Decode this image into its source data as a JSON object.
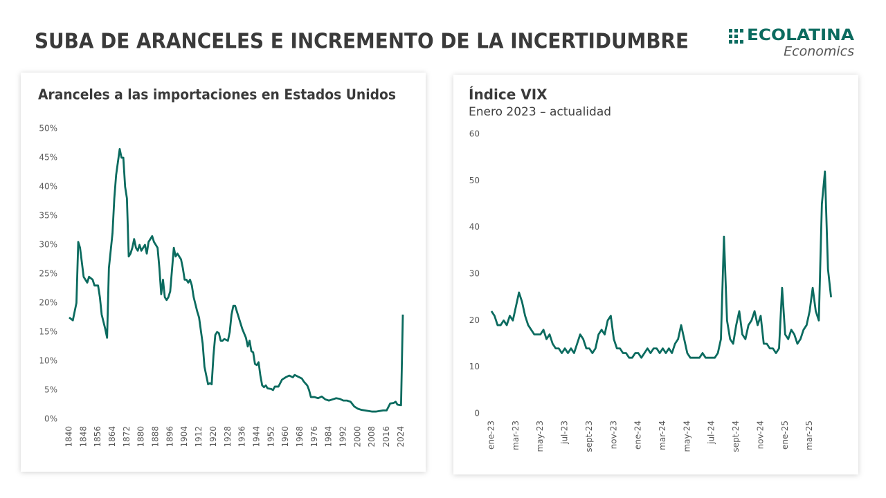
{
  "header": {
    "title": "SUBA DE ARANCELES E INCREMENTO DE LA INCERTIDUMBRE"
  },
  "logo": {
    "name": "ECOLATINA",
    "tagline": "Economics"
  },
  "chart_data": [
    {
      "type": "line",
      "title": "Aranceles a las importaciones en Estados Unidos",
      "color": "#0b6b5f",
      "x": [
        1840,
        1842,
        1844,
        1845,
        1846,
        1847,
        1848,
        1850,
        1851,
        1853,
        1854,
        1856,
        1857,
        1858,
        1860,
        1861,
        1862,
        1864,
        1865,
        1866,
        1868,
        1869,
        1870,
        1871,
        1872,
        1873,
        1874,
        1875,
        1876,
        1877,
        1878,
        1879,
        1880,
        1882,
        1883,
        1884,
        1886,
        1887,
        1889,
        1890,
        1891,
        1892,
        1893,
        1894,
        1895,
        1896,
        1898,
        1899,
        1900,
        1902,
        1903,
        1904,
        1905,
        1906,
        1907,
        1908,
        1909,
        1911,
        1912,
        1914,
        1915,
        1917,
        1918,
        1919,
        1920,
        1921,
        1922,
        1923,
        1924,
        1925,
        1926,
        1928,
        1929,
        1930,
        1931,
        1932,
        1933,
        1934,
        1935,
        1936,
        1938,
        1939,
        1940,
        1941,
        1942,
        1943,
        1944,
        1945,
        1946,
        1947,
        1948,
        1949,
        1950,
        1952,
        1953,
        1954,
        1956,
        1958,
        1960,
        1962,
        1964,
        1965,
        1967,
        1969,
        1970,
        1972,
        1973,
        1974,
        1976,
        1978,
        1980,
        1982,
        1984,
        1986,
        1988,
        1990,
        1992,
        1994,
        1996,
        1998,
        2000,
        2002,
        2004,
        2006,
        2008,
        2010,
        2012,
        2014,
        2016,
        2018,
        2020,
        2021,
        2022,
        2024,
        2025
      ],
      "values": [
        17.5,
        17,
        20,
        30.5,
        29.5,
        27,
        24.5,
        23.5,
        24.5,
        24,
        23,
        23,
        21,
        18,
        15.5,
        14,
        26,
        32,
        38,
        42,
        46.5,
        45,
        45,
        40,
        38,
        28,
        28.5,
        29.5,
        31,
        29.5,
        29,
        30,
        29,
        30,
        28.5,
        30.5,
        31.5,
        30.5,
        29.5,
        26,
        21.5,
        24,
        21,
        20.5,
        21,
        22,
        29.5,
        28,
        28.5,
        27.5,
        26,
        24,
        24,
        23.5,
        24,
        23,
        21,
        18.5,
        17.5,
        13,
        9,
        6,
        6.2,
        6,
        11,
        14.5,
        15,
        14.8,
        13.5,
        13.5,
        13.8,
        13.5,
        15,
        18,
        19.5,
        19.5,
        18.5,
        17.5,
        16.5,
        15.5,
        14,
        12.5,
        13.5,
        11.7,
        11.5,
        9.5,
        9.3,
        9.8,
        7.5,
        5.8,
        5.5,
        5.8,
        5.3,
        5.2,
        5,
        5.6,
        5.6,
        6.8,
        7.2,
        7.5,
        7.2,
        7.6,
        7.3,
        7,
        6.5,
        5.8,
        5,
        3.8,
        3.8,
        3.6,
        3.9,
        3.4,
        3.2,
        3.4,
        3.6,
        3.5,
        3.2,
        3.2,
        3,
        2.2,
        1.8,
        1.6,
        1.5,
        1.4,
        1.3,
        1.3,
        1.4,
        1.5,
        1.5,
        2.7,
        2.8,
        3,
        2.5,
        2.4,
        18
      ],
      "xlim": [
        1840,
        2025
      ],
      "xticks": [
        1840,
        1848,
        1856,
        1864,
        1872,
        1880,
        1888,
        1896,
        1904,
        1912,
        1920,
        1928,
        1936,
        1944,
        1952,
        1960,
        1968,
        1976,
        1984,
        1992,
        2000,
        2008,
        2016,
        2024
      ],
      "ylim": [
        0,
        50
      ],
      "yticks": [
        {
          "value": 0,
          "label": "0%"
        },
        {
          "value": 5,
          "label": "5%"
        },
        {
          "value": 10,
          "label": "10%"
        },
        {
          "value": 15,
          "label": "15%"
        },
        {
          "value": 20,
          "label": "20%"
        },
        {
          "value": 25,
          "label": "25%"
        },
        {
          "value": 30,
          "label": "30%"
        },
        {
          "value": 35,
          "label": "35%"
        },
        {
          "value": 40,
          "label": "40%"
        },
        {
          "value": 45,
          "label": "45%"
        },
        {
          "value": 50,
          "label": "50%"
        }
      ],
      "grid": false
    },
    {
      "type": "line",
      "title": "Índice VIX",
      "subtitle": "Enero 2023 – actualidad",
      "color": "#0b6b5f",
      "categories": [
        "ene-23",
        null,
        null,
        null,
        null,
        null,
        null,
        null,
        "mar-23",
        null,
        null,
        null,
        null,
        null,
        null,
        null,
        "may-23",
        null,
        null,
        null,
        null,
        null,
        null,
        null,
        "jul-23",
        null,
        null,
        null,
        null,
        null,
        null,
        null,
        "sept-23",
        null,
        null,
        null,
        null,
        null,
        null,
        null,
        "nov-23",
        null,
        null,
        null,
        null,
        null,
        null,
        null,
        "ene-24",
        null,
        null,
        null,
        null,
        null,
        null,
        null,
        "mar-24",
        null,
        null,
        null,
        null,
        null,
        null,
        null,
        "may-24",
        null,
        null,
        null,
        null,
        null,
        null,
        null,
        "jul-24",
        null,
        null,
        null,
        null,
        null,
        null,
        null,
        "sept-24",
        null,
        null,
        null,
        null,
        null,
        null,
        null,
        "nov-24",
        null,
        null,
        null,
        null,
        null,
        null,
        null,
        "ene-25",
        null,
        null,
        null,
        null,
        null,
        null,
        null,
        "mar-25",
        null,
        null,
        null,
        null,
        null,
        null,
        null
      ],
      "values": [
        22,
        21,
        19,
        19,
        20,
        19,
        21,
        20,
        23,
        26,
        24,
        21,
        19,
        18,
        17,
        17,
        17,
        18,
        16,
        17,
        15,
        14,
        14,
        13,
        14,
        13,
        14,
        13,
        15,
        17,
        16,
        14,
        14,
        13,
        14,
        17,
        18,
        17,
        20,
        21,
        16,
        14,
        14,
        13,
        13,
        12,
        12,
        13,
        13,
        12,
        13,
        14,
        13,
        14,
        14,
        13,
        14,
        13,
        14,
        13,
        15,
        16,
        19,
        16,
        13,
        12,
        12,
        12,
        12,
        13,
        12,
        12,
        12,
        12,
        13,
        16,
        38,
        20,
        16,
        15,
        19,
        22,
        17,
        16,
        19,
        20,
        22,
        19,
        21,
        15,
        15,
        14,
        14,
        13,
        14,
        27,
        17,
        16,
        18,
        17,
        15,
        16,
        18,
        19,
        22,
        27,
        22,
        20,
        45,
        52,
        31,
        25
      ],
      "ylim": [
        0,
        60
      ],
      "yticks": [
        0,
        10,
        20,
        30,
        40,
        50,
        60
      ],
      "grid": false
    }
  ]
}
